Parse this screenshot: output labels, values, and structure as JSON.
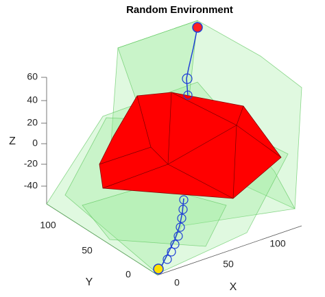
{
  "title": "Random Environment",
  "axes": {
    "x": {
      "label": "X",
      "ticks": [
        0,
        50,
        100
      ]
    },
    "y": {
      "label": "Y",
      "ticks": [
        0,
        50,
        100
      ]
    },
    "z": {
      "label": "Z",
      "ticks": [
        60,
        40,
        20,
        0,
        -20,
        -40
      ]
    }
  }
}
